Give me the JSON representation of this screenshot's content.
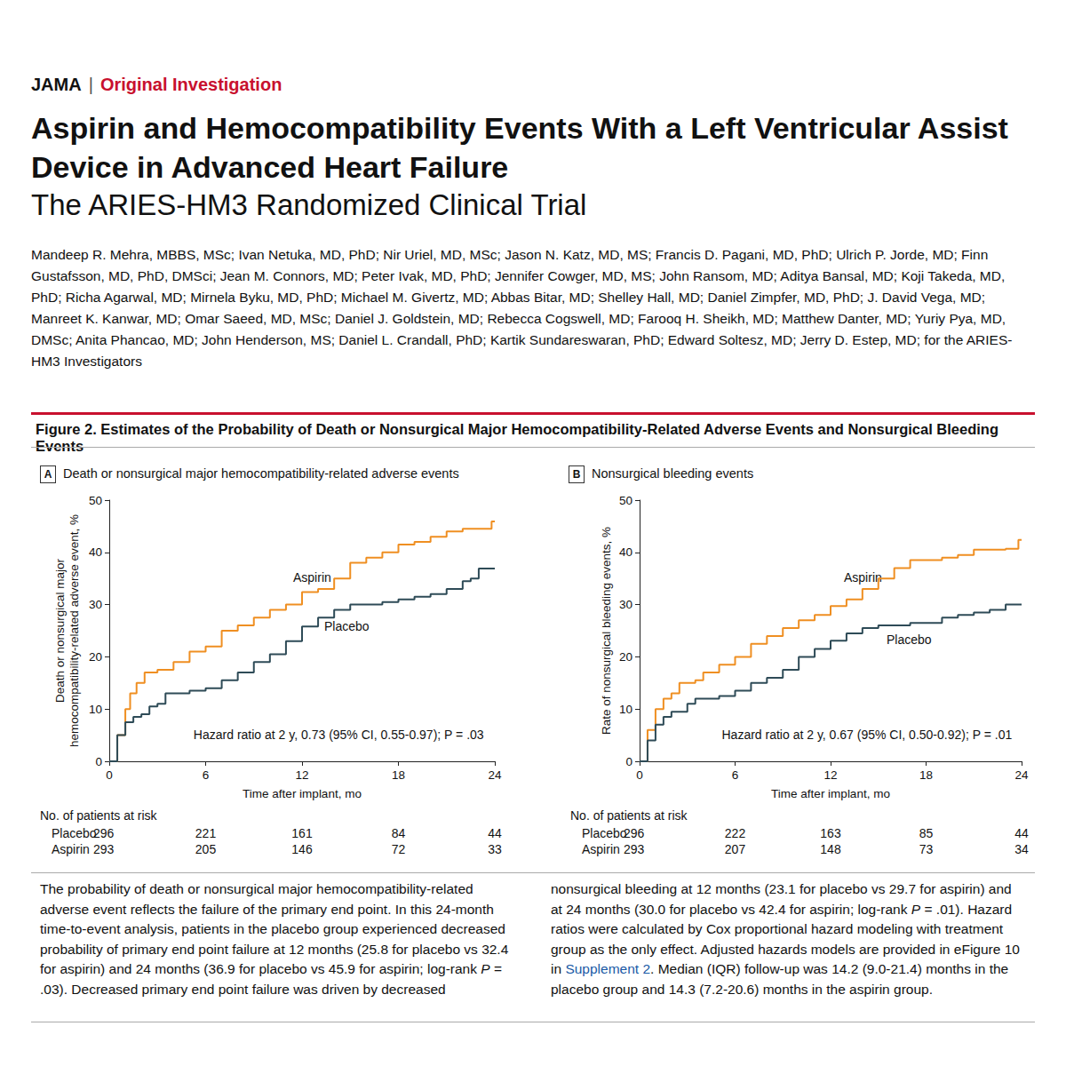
{
  "header": {
    "journal": "JAMA",
    "separator": "|",
    "section": "Original Investigation"
  },
  "title": "Aspirin and Hemocompatibility Events With a Left Ventricular Assist Device in Advanced Heart Failure",
  "subtitle": "The ARIES-HM3 Randomized Clinical Trial",
  "authors": "Mandeep R. Mehra, MBBS, MSc; Ivan Netuka, MD, PhD; Nir Uriel, MD, MSc; Jason N. Katz, MD, MS; Francis D. Pagani, MD, PhD; Ulrich P. Jorde, MD; Finn Gustafsson, MD, PhD, DMSci; Jean M. Connors, MD; Peter Ivak, MD, PhD; Jennifer Cowger, MD, MS; John Ransom, MD; Aditya Bansal, MD; Koji Takeda, MD, PhD; Richa Agarwal, MD; Mirnela Byku, MD, PhD; Michael M. Givertz, MD; Abbas Bitar, MD; Shelley Hall, MD; Daniel Zimpfer, MD, PhD; J. David Vega, MD; Manreet K. Kanwar, MD; Omar Saeed, MD, MSc; Daniel J. Goldstein, MD; Rebecca Cogswell, MD; Farooq H. Sheikh, MD; Matthew Danter, MD; Yuriy Pya, MD, DMSc; Anita Phancao, MD; John Henderson, MS; Daniel L. Crandall, PhD; Kartik Sundareswaran, PhD; Edward Soltesz, MD; Jerry D. Estep, MD; for the ARIES-HM3 Investigators",
  "figure_title": "Figure 2. Estimates of the Probability of Death or Nonsurgical Major Hemocompatibility-Related Adverse Events and Nonsurgical Bleeding Events",
  "chart_data": [
    {
      "type": "line",
      "panel": "A",
      "title": "Death or nonsurgical major hemocompatibility-related adverse events",
      "xlabel": "Time after implant, mo",
      "ylabel": "Death or nonsurgical major\nhemocompatibility-related adverse event, %",
      "annotation": "Hazard ratio at 2 y, 0.73 (95% CI, 0.55-0.97); P = .03",
      "xlim": [
        0,
        24
      ],
      "xticks": [
        0,
        6,
        12,
        18,
        24
      ],
      "ylim": [
        0,
        50
      ],
      "yticks": [
        0,
        10,
        20,
        30,
        40,
        50
      ],
      "grid": false,
      "series": [
        {
          "name": "Aspirin",
          "color": "#ef8f22",
          "line_style": "step",
          "x": [
            0,
            0.5,
            1,
            1.3,
            1.7,
            2.2,
            3,
            4,
            5,
            6,
            7,
            8,
            9,
            10,
            11,
            12,
            13,
            14,
            15,
            16,
            17,
            18,
            19,
            20,
            21,
            22,
            23.8,
            24
          ],
          "values": [
            0,
            5,
            10,
            13,
            15,
            17,
            17.5,
            19,
            21,
            22,
            25,
            26,
            27.5,
            29,
            30,
            32.4,
            33,
            35,
            38,
            39,
            40,
            41.5,
            42,
            43,
            44,
            44.5,
            45.9,
            45.9
          ]
        },
        {
          "name": "Placebo",
          "color": "#2e4b57",
          "line_style": "step",
          "x": [
            0,
            0.5,
            1,
            1.5,
            2,
            2.5,
            3,
            3.5,
            5,
            6,
            7,
            8,
            9,
            10,
            11,
            12,
            13,
            14,
            15,
            17,
            18,
            19,
            20,
            21,
            22,
            22.5,
            23,
            24
          ],
          "values": [
            0,
            5,
            7.5,
            8.5,
            9,
            10.5,
            11,
            13,
            13.5,
            14,
            15.5,
            17,
            19,
            20.5,
            23,
            25.8,
            27.5,
            29,
            30,
            30.5,
            31,
            31.5,
            32,
            33,
            34.5,
            35,
            36.9,
            36.9
          ]
        }
      ],
      "risk_table": {
        "title": "No. of patients at risk",
        "times": [
          0,
          6,
          12,
          18,
          24
        ],
        "rows": [
          {
            "name": "Placebo",
            "values": [
              296,
              221,
              161,
              84,
              44
            ]
          },
          {
            "name": "Aspirin",
            "values": [
              293,
              205,
              146,
              72,
              33
            ]
          }
        ]
      }
    },
    {
      "type": "line",
      "panel": "B",
      "title": "Nonsurgical bleeding events",
      "xlabel": "Time after implant, mo",
      "ylabel": "Rate of nonsurgical bleeding events, %",
      "annotation": "Hazard ratio at 2 y, 0.67 (95% CI, 0.50-0.92); P = .01",
      "xlim": [
        0,
        24
      ],
      "xticks": [
        0,
        6,
        12,
        18,
        24
      ],
      "ylim": [
        0,
        50
      ],
      "yticks": [
        0,
        10,
        20,
        30,
        40,
        50
      ],
      "grid": false,
      "series": [
        {
          "name": "Aspirin",
          "color": "#ef8f22",
          "line_style": "step",
          "x": [
            0,
            0.5,
            1,
            1.5,
            2,
            2.5,
            3.5,
            4,
            5,
            6,
            7,
            8,
            9,
            10,
            11,
            12,
            13,
            14,
            15,
            16,
            17,
            19,
            20,
            21,
            23,
            23.8,
            24
          ],
          "values": [
            0,
            6,
            10,
            12,
            13,
            15,
            15.5,
            17,
            18.5,
            20,
            22.5,
            24,
            25.5,
            27,
            28,
            29.7,
            31,
            33,
            35,
            37,
            38.5,
            39,
            39.5,
            40.5,
            40.7,
            42.4,
            42.4
          ]
        },
        {
          "name": "Placebo",
          "color": "#2e4b57",
          "line_style": "step",
          "x": [
            0,
            0.5,
            1,
            1.5,
            2,
            3,
            3.5,
            5,
            6,
            7,
            8,
            9,
            10,
            11,
            12,
            13,
            14,
            15,
            17,
            19,
            20,
            21,
            22,
            23,
            24
          ],
          "values": [
            0,
            4,
            7,
            8.5,
            9.5,
            11,
            12,
            12.5,
            13.5,
            15,
            16,
            17.5,
            20,
            21.5,
            23.1,
            24.5,
            25.5,
            26,
            26.5,
            27.5,
            28,
            28.5,
            29,
            30,
            30
          ]
        }
      ],
      "risk_table": {
        "title": "No. of patients at risk",
        "times": [
          0,
          6,
          12,
          18,
          24
        ],
        "rows": [
          {
            "name": "Placebo",
            "values": [
              296,
              222,
              163,
              85,
              44
            ]
          },
          {
            "name": "Aspirin",
            "values": [
              293,
              207,
              148,
              73,
              34
            ]
          }
        ]
      }
    }
  ],
  "caption": [
    {
      "text": "The probability of death or nonsurgical major hemocompatibility-related adverse event reflects the failure of the primary end point. In this 24-month time-to-event analysis, patients in the placebo group experienced decreased probability of primary end point failure at 12 months (25.8 for placebo vs 32.4 for aspirin) and 24 months (36.9 for placebo vs 45.9 for aspirin; log-rank "
    },
    {
      "text": "P",
      "style": "italic"
    },
    {
      "text": " = .03). Decreased primary end point failure was driven by decreased nonsurgical bleeding at 12 months (23.1 for placebo vs 29.7 for aspirin) and at 24 months (30.0 for placebo vs 42.4 for aspirin; log-rank "
    },
    {
      "text": "P",
      "style": "italic"
    },
    {
      "text": " = .01). Hazard ratios were calculated by Cox proportional hazard modeling with treatment group as the only effect. Adjusted hazards models are provided in eFigure 10 in "
    },
    {
      "text": "Supplement 2",
      "style": "link"
    },
    {
      "text": ". Median (IQR) follow-up was 14.2 (9.0-21.4) months in the placebo group and 14.3 (7.2-20.6) months in the aspirin group."
    }
  ]
}
